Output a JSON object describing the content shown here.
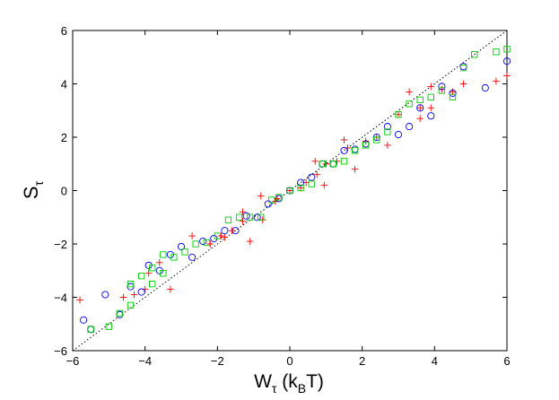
{
  "chart_data": {
    "type": "scatter",
    "xlabel": {
      "main": "W",
      "sub": "τ",
      "rest": " (k",
      "sub2": "B",
      "end": "T)"
    },
    "ylabel": {
      "main": "S",
      "sub": "τ"
    },
    "xlim": [
      -6,
      6
    ],
    "ylim": [
      -6,
      6
    ],
    "xticks": [
      -6,
      -4,
      -2,
      0,
      2,
      4,
      6
    ],
    "yticks": [
      -6,
      -4,
      -2,
      0,
      2,
      4,
      6
    ],
    "xtick_labels": [
      "−6",
      "−4",
      "−2",
      "0",
      "2",
      "4",
      "6"
    ],
    "ytick_labels": [
      "−6",
      "−4",
      "−2",
      "0",
      "2",
      "4",
      "6"
    ],
    "grid": false,
    "reference_line": {
      "style": "dotted",
      "color": "#000000",
      "from": [
        -6,
        -6
      ],
      "to": [
        6,
        6
      ]
    },
    "series": [
      {
        "marker": "plus",
        "color": "#ff0000",
        "points": [
          [
            -5.8,
            -4.1
          ],
          [
            -4.6,
            -4.0
          ],
          [
            -4.3,
            -3.9
          ],
          [
            -4.0,
            -3.7
          ],
          [
            -3.9,
            -3.1
          ],
          [
            -3.6,
            -2.7
          ],
          [
            -3.3,
            -3.7
          ],
          [
            -2.7,
            -1.7
          ],
          [
            -2.2,
            -2.0
          ],
          [
            -1.9,
            -1.7
          ],
          [
            -1.8,
            -1.75
          ],
          [
            -1.6,
            -1.5
          ],
          [
            -1.3,
            -0.8
          ],
          [
            -1.3,
            -1.15
          ],
          [
            -1.1,
            -1.9
          ],
          [
            -0.8,
            -0.2
          ],
          [
            -0.75,
            -1.1
          ],
          [
            -0.4,
            -0.4
          ],
          [
            -0.35,
            -0.3
          ],
          [
            0.0,
            0.0
          ],
          [
            0.3,
            0.1
          ],
          [
            0.45,
            0.3
          ],
          [
            0.7,
            1.1
          ],
          [
            0.75,
            0.6
          ],
          [
            0.95,
            0.2
          ],
          [
            1.0,
            1.0
          ],
          [
            1.3,
            1.1
          ],
          [
            1.5,
            1.9
          ],
          [
            1.6,
            1.6
          ],
          [
            1.8,
            0.8
          ],
          [
            2.1,
            1.85
          ],
          [
            2.4,
            2.0
          ],
          [
            2.7,
            1.7
          ],
          [
            3.0,
            2.85
          ],
          [
            3.3,
            3.7
          ],
          [
            3.6,
            2.7
          ],
          [
            3.6,
            3.1
          ],
          [
            3.9,
            3.9
          ],
          [
            3.9,
            3.1
          ],
          [
            4.2,
            3.8
          ],
          [
            4.5,
            3.7
          ],
          [
            4.8,
            4.0
          ],
          [
            5.7,
            4.1
          ],
          [
            6.0,
            4.3
          ]
        ]
      },
      {
        "marker": "circle",
        "color": "#0000ff",
        "points": [
          [
            -5.7,
            -4.85
          ],
          [
            -5.5,
            -5.2
          ],
          [
            -5.1,
            -3.9
          ],
          [
            -4.7,
            -4.65
          ],
          [
            -4.4,
            -3.6
          ],
          [
            -4.1,
            -3.8
          ],
          [
            -3.9,
            -2.8
          ],
          [
            -3.6,
            -3.0
          ],
          [
            -3.3,
            -2.4
          ],
          [
            -3.0,
            -2.1
          ],
          [
            -2.7,
            -2.5
          ],
          [
            -2.4,
            -1.9
          ],
          [
            -2.1,
            -1.8
          ],
          [
            -1.8,
            -1.5
          ],
          [
            -1.5,
            -1.5
          ],
          [
            -1.2,
            -0.95
          ],
          [
            -0.9,
            -1.0
          ],
          [
            -0.6,
            -0.5
          ],
          [
            -0.3,
            -0.3
          ],
          [
            0.0,
            0.0
          ],
          [
            0.3,
            0.3
          ],
          [
            0.6,
            0.5
          ],
          [
            0.9,
            1.0
          ],
          [
            1.2,
            1.0
          ],
          [
            1.5,
            1.5
          ],
          [
            1.8,
            1.55
          ],
          [
            2.1,
            1.75
          ],
          [
            2.4,
            2.0
          ],
          [
            2.7,
            2.4
          ],
          [
            3.0,
            2.1
          ],
          [
            3.3,
            2.4
          ],
          [
            3.6,
            3.1
          ],
          [
            3.9,
            2.8
          ],
          [
            4.2,
            3.9
          ],
          [
            4.5,
            3.65
          ],
          [
            4.8,
            4.65
          ],
          [
            5.4,
            3.85
          ],
          [
            6.0,
            4.85
          ]
        ]
      },
      {
        "marker": "square",
        "color": "#00cc00",
        "points": [
          [
            -5.5,
            -5.2
          ],
          [
            -5.0,
            -5.1
          ],
          [
            -4.7,
            -4.6
          ],
          [
            -4.4,
            -4.3
          ],
          [
            -4.4,
            -3.5
          ],
          [
            -4.1,
            -3.2
          ],
          [
            -3.8,
            -3.5
          ],
          [
            -3.8,
            -2.9
          ],
          [
            -3.5,
            -3.1
          ],
          [
            -3.5,
            -2.4
          ],
          [
            -3.2,
            -2.5
          ],
          [
            -2.9,
            -2.3
          ],
          [
            -2.6,
            -2.0
          ],
          [
            -2.3,
            -1.95
          ],
          [
            -2.0,
            -1.7
          ],
          [
            -1.7,
            -1.1
          ],
          [
            -1.4,
            -1.0
          ],
          [
            -1.1,
            -1.0
          ],
          [
            -0.8,
            -1.0
          ],
          [
            -0.5,
            -0.35
          ],
          [
            -0.3,
            -0.25
          ],
          [
            0.0,
            0.0
          ],
          [
            0.3,
            0.1
          ],
          [
            0.6,
            0.25
          ],
          [
            0.9,
            1.0
          ],
          [
            1.2,
            1.0
          ],
          [
            1.5,
            1.1
          ],
          [
            1.8,
            1.5
          ],
          [
            2.1,
            1.7
          ],
          [
            2.4,
            1.9
          ],
          [
            2.7,
            2.2
          ],
          [
            3.0,
            2.85
          ],
          [
            3.3,
            3.25
          ],
          [
            3.6,
            3.4
          ],
          [
            3.9,
            3.5
          ],
          [
            4.2,
            3.75
          ],
          [
            4.5,
            3.5
          ],
          [
            4.8,
            4.6
          ],
          [
            5.1,
            5.1
          ],
          [
            5.7,
            5.2
          ],
          [
            6.0,
            5.3
          ]
        ]
      }
    ]
  }
}
